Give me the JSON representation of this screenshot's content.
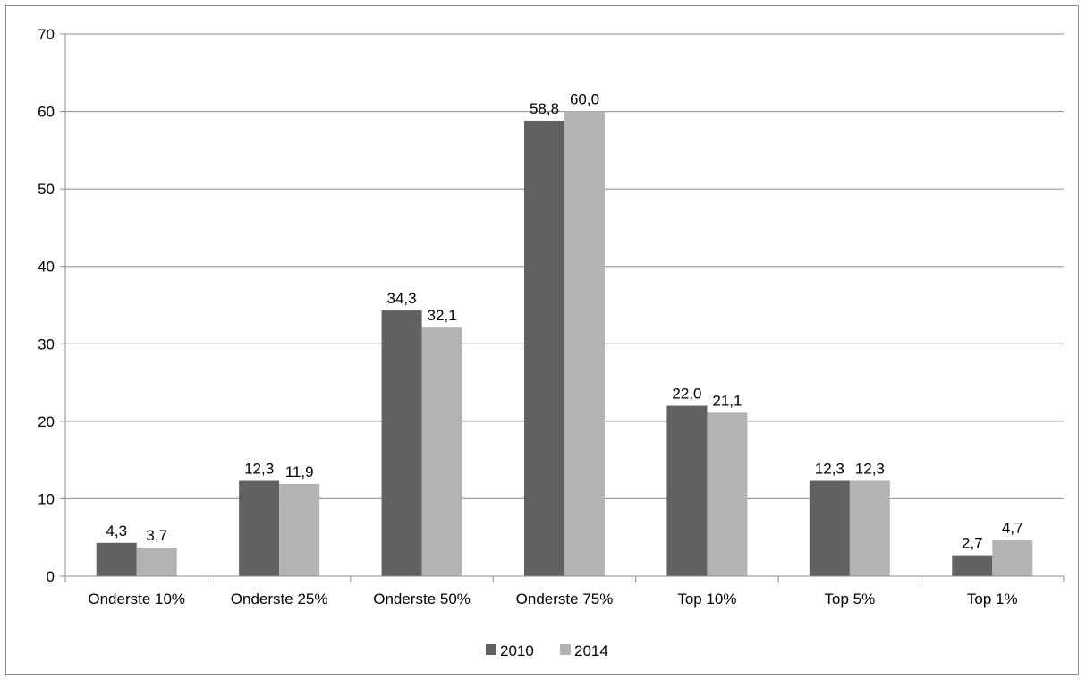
{
  "chart_data": {
    "type": "bar",
    "title": "",
    "xlabel": "",
    "ylabel": "",
    "ylim": [
      0,
      70
    ],
    "yticks": [
      0,
      10,
      20,
      30,
      40,
      50,
      60,
      70
    ],
    "grid": true,
    "legend_position": "bottom",
    "categories": [
      "Onderste 10%",
      "Onderste 25%",
      "Onderste 50%",
      "Onderste 75%",
      "Top 10%",
      "Top 5%",
      "Top 1%"
    ],
    "series": [
      {
        "name": "2010",
        "color": "#616161",
        "values": [
          4.3,
          12.3,
          34.3,
          58.8,
          22.0,
          12.3,
          2.7
        ],
        "labels": [
          "4,3",
          "12,3",
          "34,3",
          "58,8",
          "22,0",
          "12,3",
          "2,7"
        ]
      },
      {
        "name": "2014",
        "color": "#b3b3b3",
        "values": [
          3.7,
          11.9,
          32.1,
          60.0,
          21.1,
          12.3,
          4.7
        ],
        "labels": [
          "3,7",
          "11,9",
          "32,1",
          "60,0",
          "21,1",
          "12,3",
          "4,7"
        ]
      }
    ]
  }
}
